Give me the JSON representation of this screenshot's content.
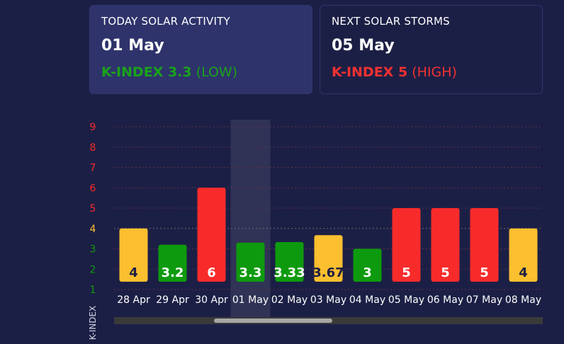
{
  "today_card": {
    "title": "TODAY SOLAR ACTIVITY",
    "date": "01 May",
    "kindex_label": "K-INDEX 3.3",
    "level": "(LOW)"
  },
  "next_card": {
    "title": "NEXT SOLAR STORMS",
    "date": "05 May",
    "kindex_label": "K-INDEX 5",
    "level": "(HIGH)"
  },
  "colors": {
    "low": "#0e9a0e",
    "moderate": "#fbbf2f",
    "high": "#f82b2b",
    "background": "#1c1f45"
  },
  "chart_data": {
    "type": "bar",
    "ylabel": "K-INDEX",
    "ylim": [
      1,
      9
    ],
    "yticks": [
      1,
      2,
      3,
      4,
      5,
      6,
      7,
      8,
      9
    ],
    "categories": [
      "28 Apr",
      "29 Apr",
      "30 Apr",
      "01 May",
      "02 May",
      "03 May",
      "04 May",
      "05 May",
      "06 May",
      "07 May",
      "08 May"
    ],
    "values": [
      4,
      3.2,
      6,
      3.3,
      3.33,
      3.67,
      3,
      5,
      5,
      5,
      4
    ],
    "value_labels": [
      "4",
      "3.2",
      "6",
      "3.3",
      "3.33",
      "3.67",
      "3",
      "5",
      "5",
      "5",
      "4"
    ],
    "bar_levels": [
      "moderate",
      "low",
      "high",
      "low",
      "low",
      "moderate",
      "low",
      "high",
      "high",
      "high",
      "moderate"
    ],
    "highlighted_category": "01 May",
    "grid": true
  }
}
